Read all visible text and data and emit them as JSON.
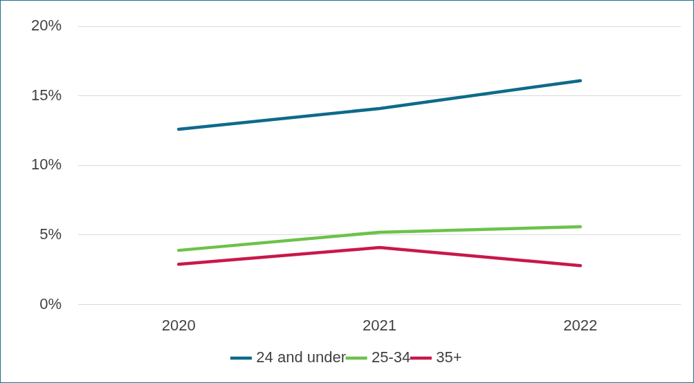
{
  "chart_data": {
    "type": "line",
    "categories": [
      "2020",
      "2021",
      "2022"
    ],
    "series": [
      {
        "name": "24 and under",
        "color": "#0e6a8a",
        "values": [
          12.6,
          14.1,
          16.1
        ]
      },
      {
        "name": "25-34",
        "color": "#6cc24a",
        "values": [
          3.9,
          5.2,
          5.6
        ]
      },
      {
        "name": "35+",
        "color": "#c8184a",
        "values": [
          2.9,
          4.1,
          2.8
        ]
      }
    ],
    "ylim": [
      0,
      20
    ],
    "yticks": [
      {
        "value": 0,
        "label": "0%"
      },
      {
        "value": 5,
        "label": "5%"
      },
      {
        "value": 10,
        "label": "10%"
      },
      {
        "value": 15,
        "label": "15%"
      },
      {
        "value": 20,
        "label": "20%"
      }
    ],
    "grid": "y",
    "legend": "bottom",
    "marker": "none",
    "line_style": "solid"
  }
}
